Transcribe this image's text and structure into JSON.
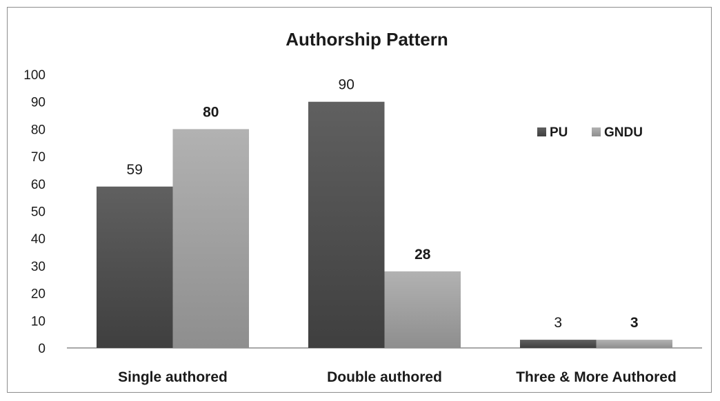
{
  "chart_data": {
    "type": "bar",
    "title": "Authorship Pattern",
    "xlabel": "",
    "ylabel": "",
    "categories": [
      "Single authored",
      "Double authored",
      "Three & More Authored"
    ],
    "series": [
      {
        "name": "PU",
        "values": [
          59,
          90,
          3
        ],
        "color": "#555555",
        "label_style": "normal"
      },
      {
        "name": "GNDU",
        "values": [
          80,
          28,
          3
        ],
        "color": "#a6a6a6",
        "label_style": "bold"
      }
    ],
    "ylim": [
      0,
      100
    ],
    "yticks": [
      0,
      10,
      20,
      30,
      40,
      50,
      60,
      70,
      80,
      90,
      100
    ],
    "grid": false,
    "legend_position": "right"
  }
}
